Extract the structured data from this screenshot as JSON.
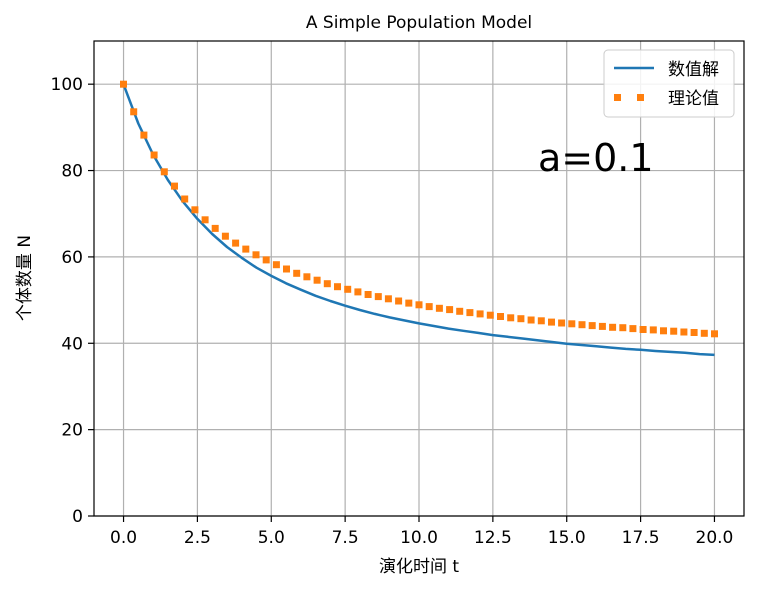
{
  "chart_data": {
    "type": "line",
    "title": "A Simple Population Model",
    "xlabel": "演化时间 t",
    "ylabel": "个体数量 N",
    "annotation": "a=0.1",
    "xlim": [
      -1.0,
      21.0
    ],
    "ylim": [
      0,
      110
    ],
    "xticks": [
      0.0,
      2.5,
      5.0,
      7.5,
      10.0,
      12.5,
      15.0,
      17.5,
      20.0
    ],
    "xtick_labels": [
      "0.0",
      "2.5",
      "5.0",
      "7.5",
      "10.0",
      "12.5",
      "15.0",
      "17.5",
      "20.0"
    ],
    "yticks": [
      0,
      20,
      40,
      60,
      80,
      100
    ],
    "ytick_labels": [
      "0",
      "20",
      "40",
      "60",
      "80",
      "100"
    ],
    "grid": true,
    "legend_position": "upper right",
    "series": [
      {
        "name": "数值解",
        "style": "solid-line",
        "color": "#1f77b4",
        "x": [
          0.0,
          0.5,
          1.0,
          1.5,
          2.0,
          2.5,
          3.0,
          3.5,
          4.0,
          4.5,
          5.0,
          5.5,
          6.0,
          6.5,
          7.0,
          7.5,
          8.0,
          8.5,
          9.0,
          9.5,
          10.0,
          10.5,
          11.0,
          11.5,
          12.0,
          12.5,
          13.0,
          13.5,
          14.0,
          14.5,
          15.0,
          15.5,
          16.0,
          16.5,
          17.0,
          17.5,
          18.0,
          18.5,
          19.0,
          19.5,
          20.0
        ],
        "y": [
          100.0,
          90.9,
          83.7,
          77.8,
          72.9,
          68.8,
          65.3,
          62.3,
          59.8,
          57.5,
          55.6,
          53.9,
          52.4,
          51.0,
          49.8,
          48.7,
          47.7,
          46.8,
          46.0,
          45.3,
          44.6,
          44.0,
          43.4,
          42.9,
          42.4,
          41.9,
          41.5,
          41.1,
          40.7,
          40.3,
          39.9,
          39.6,
          39.3,
          39.0,
          38.7,
          38.5,
          38.2,
          38.0,
          37.8,
          37.5,
          37.3
        ]
      },
      {
        "name": "理论值",
        "style": "square-markers",
        "color": "#ff7f0e",
        "x": [
          0.0,
          0.345,
          0.69,
          1.034,
          1.379,
          1.724,
          2.069,
          2.414,
          2.759,
          3.103,
          3.448,
          3.793,
          4.138,
          4.483,
          4.828,
          5.172,
          5.517,
          5.862,
          6.207,
          6.552,
          6.897,
          7.241,
          7.586,
          7.931,
          8.276,
          8.621,
          8.966,
          9.31,
          9.655,
          10.0,
          10.345,
          10.69,
          11.034,
          11.379,
          11.724,
          12.069,
          12.414,
          12.759,
          13.103,
          13.448,
          13.793,
          14.138,
          14.483,
          14.828,
          15.172,
          15.517,
          15.862,
          16.207,
          16.552,
          16.897,
          17.241,
          17.586,
          17.931,
          18.276,
          18.621,
          18.966,
          19.31,
          19.655,
          20.0
        ],
        "y": [
          100.0,
          93.6,
          88.2,
          83.6,
          79.7,
          76.4,
          73.4,
          70.9,
          68.6,
          66.6,
          64.8,
          63.2,
          61.8,
          60.5,
          59.3,
          58.2,
          57.2,
          56.2,
          55.4,
          54.6,
          53.8,
          53.1,
          52.5,
          51.9,
          51.3,
          50.8,
          50.3,
          49.8,
          49.3,
          48.9,
          48.5,
          48.1,
          47.8,
          47.4,
          47.1,
          46.8,
          46.5,
          46.2,
          45.9,
          45.7,
          45.4,
          45.2,
          44.9,
          44.7,
          44.5,
          44.3,
          44.1,
          43.9,
          43.7,
          43.6,
          43.4,
          43.2,
          43.1,
          42.9,
          42.8,
          42.6,
          42.5,
          42.3,
          42.2
        ]
      }
    ]
  }
}
